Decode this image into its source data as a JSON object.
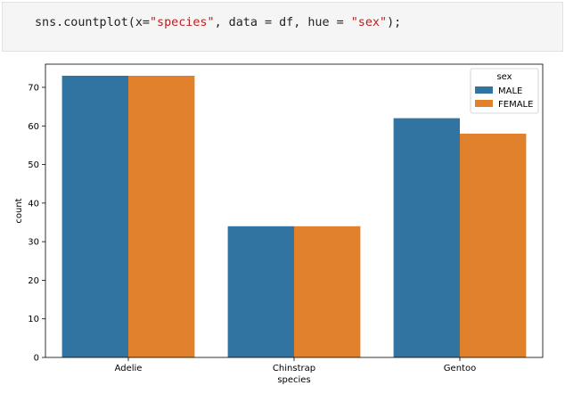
{
  "code": {
    "tokens": [
      {
        "text": "sns.countplot(x=",
        "kind": "plain"
      },
      {
        "text": "\"species\"",
        "kind": "str"
      },
      {
        "text": ", data = df, hue = ",
        "kind": "plain"
      },
      {
        "text": "\"sex\"",
        "kind": "str"
      },
      {
        "text": ");",
        "kind": "plain"
      }
    ]
  },
  "chart_data": {
    "type": "bar",
    "categories": [
      "Adelie",
      "Chinstrap",
      "Gentoo"
    ],
    "series": [
      {
        "name": "MALE",
        "values": [
          73,
          34,
          62
        ],
        "color": "#3274a1"
      },
      {
        "name": "FEMALE",
        "values": [
          73,
          34,
          58
        ],
        "color": "#e1812c"
      }
    ],
    "xlabel": "species",
    "ylabel": "count",
    "ylim": [
      0,
      76
    ],
    "yticks": [
      0,
      10,
      20,
      30,
      40,
      50,
      60,
      70
    ],
    "legend": {
      "title": "sex",
      "placement": "top-right"
    },
    "grid": false
  }
}
